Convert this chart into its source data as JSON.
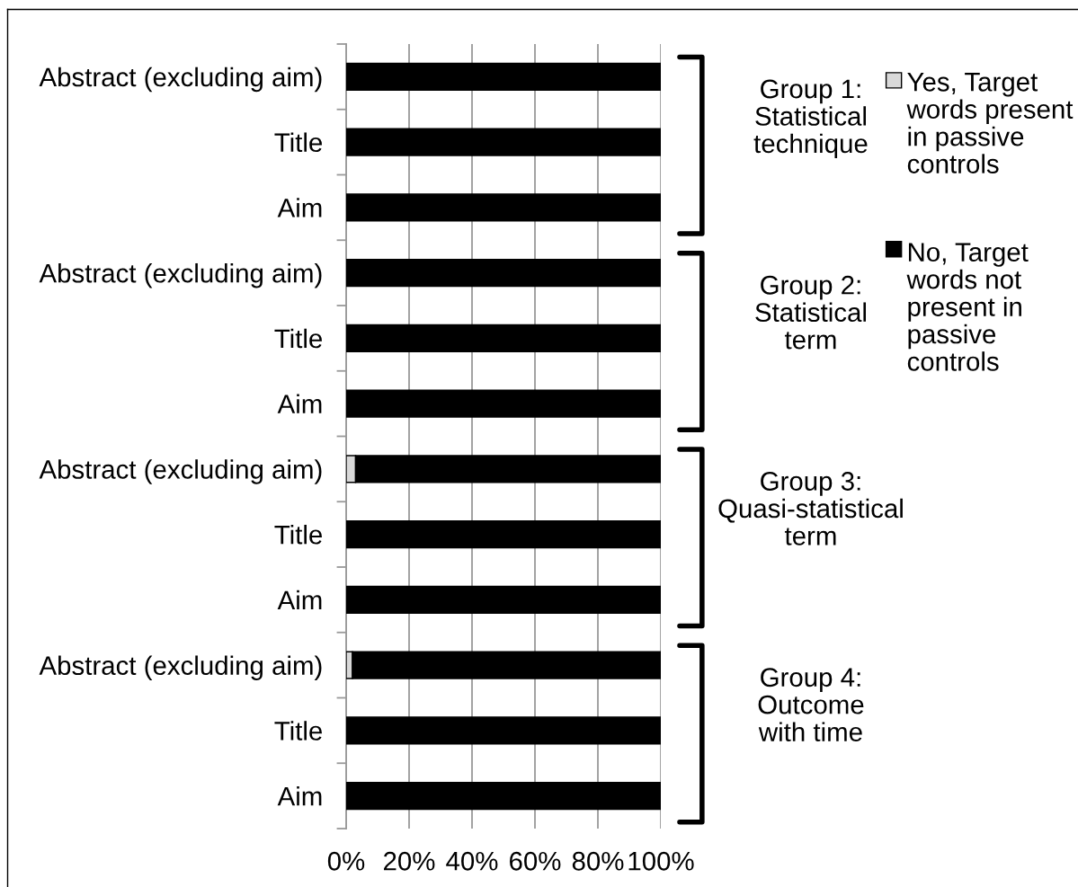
{
  "chart_data": {
    "type": "bar",
    "orientation": "horizontal",
    "stacked": true,
    "categories": [
      "Abstract (excluding aim)",
      "Title",
      "Aim",
      "Abstract (excluding aim)",
      "Title",
      "Aim",
      "Abstract (excluding aim)",
      "Title",
      "Aim",
      "Abstract (excluding aim)",
      "Title",
      "Aim"
    ],
    "series": [
      {
        "name": "Yes, Target\nwords present\nin passive\ncontrols",
        "color": "#d9d9d9",
        "values": [
          0,
          0,
          0,
          0,
          0,
          0,
          3,
          0,
          0,
          2,
          0,
          0
        ]
      },
      {
        "name": "No, Target\nwords not\npresent in\npassive\ncontrols",
        "color": "#000000",
        "values": [
          100,
          100,
          100,
          100,
          100,
          100,
          97,
          100,
          100,
          98,
          100,
          100
        ]
      }
    ],
    "xlim": [
      0,
      100
    ],
    "xticks": [
      {
        "value": 0,
        "label": "0%"
      },
      {
        "value": 20,
        "label": "20%"
      },
      {
        "value": 40,
        "label": "40%"
      },
      {
        "value": 60,
        "label": "60%"
      },
      {
        "value": 80,
        "label": "80%"
      },
      {
        "value": 100,
        "label": "100%"
      }
    ],
    "grid": "x",
    "legend": "right",
    "annotations": [
      "Group 1:\nStatistical\ntechnique",
      "Group 2:\nStatistical\nterm",
      "Group 3:\nQuasi-statistical\nterm",
      "Group 4:\nOutcome\nwith time"
    ]
  }
}
